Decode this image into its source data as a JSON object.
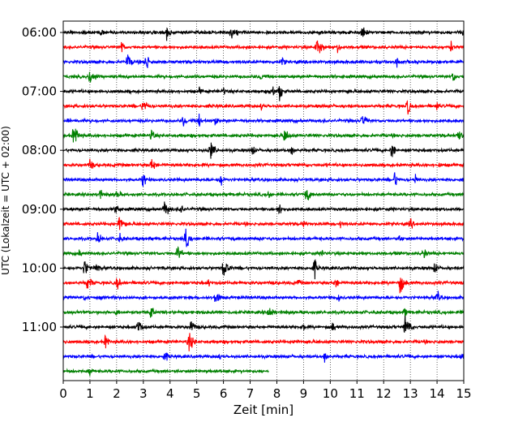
{
  "chart_data": {
    "type": "line",
    "title": "",
    "xlabel": "Zeit  [min]",
    "ylabel": "UTC (Lokalzeit = UTC + 02:00)",
    "xlim": [
      0,
      15
    ],
    "x_ticks": [
      0,
      1,
      2,
      3,
      4,
      5,
      6,
      7,
      8,
      9,
      10,
      11,
      12,
      13,
      14,
      15
    ],
    "x_grid": true,
    "y_time_range": [
      "06:00",
      "11:45"
    ],
    "y_tick_labels": [
      "06:00",
      "07:00",
      "08:00",
      "09:00",
      "10:00",
      "11:00"
    ],
    "row_interval_min": 15,
    "color_cycle": [
      "#000000",
      "#ff0000",
      "#0000ff",
      "#008000"
    ],
    "rows": [
      {
        "start": "06:00",
        "events": [
          1.4,
          3.9,
          6.3,
          9.6,
          11.2,
          14.9
        ]
      },
      {
        "start": "06:15",
        "events": [
          2.2,
          9.5,
          10.3,
          14.5
        ]
      },
      {
        "start": "06:30",
        "events": [
          2.4,
          3.1,
          8.2,
          12.5
        ]
      },
      {
        "start": "06:45",
        "events": [
          1.0,
          7.4,
          14.6
        ]
      },
      {
        "start": "07:00",
        "events": [
          5.1,
          6.0,
          7.8,
          8.1
        ]
      },
      {
        "start": "07:15",
        "events": [
          3.0,
          7.4,
          12.9,
          14.0
        ]
      },
      {
        "start": "07:30",
        "events": [
          0.2,
          4.5,
          5.1,
          5.7,
          11.2
        ]
      },
      {
        "start": "07:45",
        "events": [
          0.4,
          3.3,
          8.3,
          14.8
        ]
      },
      {
        "start": "08:00",
        "events": [
          5.5,
          7.1,
          8.5,
          12.3
        ]
      },
      {
        "start": "08:15",
        "events": [
          1.0,
          3.3,
          14.1
        ]
      },
      {
        "start": "08:30",
        "events": [
          3.0,
          5.9,
          12.4,
          13.2
        ]
      },
      {
        "start": "08:45",
        "events": [
          1.4,
          2.0,
          7.7,
          9.1
        ]
      },
      {
        "start": "09:00",
        "events": [
          2.0,
          3.8,
          4.4,
          8.1
        ]
      },
      {
        "start": "09:15",
        "events": [
          2.1,
          9.0,
          10.4,
          13.0
        ]
      },
      {
        "start": "09:30",
        "events": [
          1.3,
          2.1,
          4.6,
          7.4,
          12.6
        ]
      },
      {
        "start": "09:45",
        "events": [
          0.6,
          4.3,
          9.7,
          13.5
        ]
      },
      {
        "start": "10:00",
        "events": [
          0.8,
          1.2,
          6.0,
          9.4,
          13.9
        ]
      },
      {
        "start": "10:15",
        "events": [
          0.9,
          2.0,
          5.4,
          8.8,
          10.2,
          12.6
        ]
      },
      {
        "start": "10:30",
        "events": [
          0.8,
          5.7,
          10.3,
          14.0
        ]
      },
      {
        "start": "10:45",
        "events": [
          2.0,
          3.3,
          7.7,
          12.8
        ]
      },
      {
        "start": "11:00",
        "events": [
          2.8,
          4.8,
          9.0,
          10.1,
          12.8
        ]
      },
      {
        "start": "11:15",
        "events": [
          1.6,
          4.7,
          8.7
        ]
      },
      {
        "start": "11:30",
        "events": [
          3.8,
          5.8,
          9.8,
          14.9
        ]
      },
      {
        "start": "11:45",
        "events": [
          1.0
        ],
        "end_minute": 7.7
      }
    ]
  }
}
